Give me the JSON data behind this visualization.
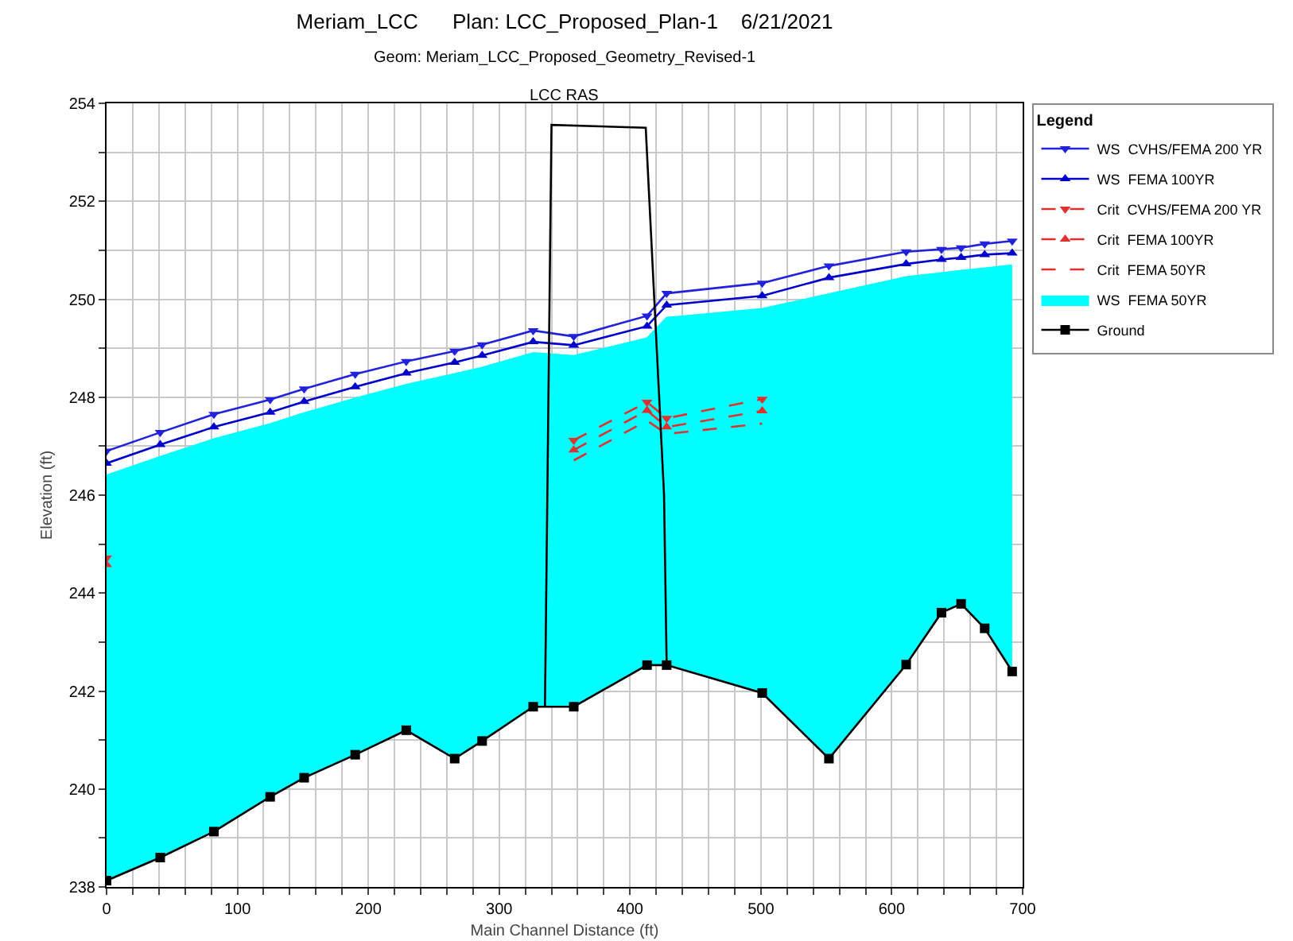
{
  "chart_data": {
    "type": "line",
    "title": "Meriam_LCC      Plan: LCC_Proposed_Plan-1    6/21/2021",
    "subtitle": "Geom: Meriam_LCC_Proposed_Geometry_Revised-1",
    "annotations": [
      "LCC RAS"
    ],
    "xlabel": "Main Channel Distance (ft)",
    "ylabel": "Elevation (ft)",
    "legend_title": "Legend",
    "legend": "top right",
    "grid": true,
    "x": [
      0,
      41,
      82,
      125,
      151,
      190,
      229,
      266,
      287,
      326,
      357,
      413,
      428,
      501,
      552,
      611,
      638,
      653,
      671,
      692
    ],
    "series": [
      {
        "name": "Ground",
        "type": "line",
        "color": "#000000",
        "marker": "square",
        "values": [
          238.13,
          238.6,
          239.13,
          239.84,
          240.23,
          240.7,
          241.2,
          240.62,
          240.98,
          241.68,
          241.68,
          242.53,
          242.53,
          241.96,
          240.62,
          242.54,
          243.6,
          243.78,
          243.28,
          242.4
        ]
      },
      {
        "name": "WS  FEMA 50YR",
        "type": "area",
        "color": "#00ffff",
        "marker": "none",
        "values": [
          246.4,
          246.78,
          247.14,
          247.45,
          247.67,
          247.97,
          248.25,
          248.47,
          248.6,
          248.9,
          248.84,
          249.2,
          249.62,
          249.8,
          250.1,
          250.45,
          250.53,
          250.58,
          250.63,
          250.69
        ]
      },
      {
        "name": "Crit  FEMA 50YR",
        "type": "line",
        "color": "#e03030",
        "marker": "none",
        "line_style": "dashed",
        "x": [
          357,
          413,
          428,
          501
        ],
        "values": [
          246.71,
          247.52,
          247.25,
          247.46
        ]
      },
      {
        "name": "Crit  FEMA 100YR",
        "type": "line",
        "color": "#e03030",
        "marker": "triangle",
        "line_style": "dashed",
        "x": [
          0,
          41,
          357,
          413,
          428,
          501
        ],
        "values": [
          244.58,
          null,
          246.92,
          247.73,
          247.39,
          247.72
        ]
      },
      {
        "name": "Crit  CVHS/FEMA 200 YR",
        "type": "line",
        "color": "#e03030",
        "marker": "triangle-down",
        "line_style": "dashed",
        "x": [
          0,
          41,
          357,
          413,
          428,
          501
        ],
        "values": [
          244.72,
          null,
          247.12,
          247.9,
          247.57,
          247.96
        ]
      },
      {
        "name": "WS  FEMA 100YR",
        "type": "line",
        "color": "#0000cc",
        "marker": "triangle",
        "values": [
          246.65,
          247.03,
          247.39,
          247.69,
          247.91,
          248.21,
          248.49,
          248.71,
          248.85,
          249.13,
          249.06,
          249.45,
          249.88,
          250.07,
          250.44,
          250.72,
          250.81,
          250.85,
          250.91,
          250.94
        ]
      },
      {
        "name": "WS  CVHS/FEMA 200 YR",
        "type": "line",
        "color": "#2222dd",
        "marker": "triangle-down",
        "values": [
          246.9,
          247.28,
          247.65,
          247.95,
          248.17,
          248.47,
          248.73,
          248.94,
          249.07,
          249.36,
          249.24,
          249.66,
          250.12,
          250.33,
          250.68,
          250.97,
          251.02,
          251.05,
          251.13,
          251.19
        ]
      },
      {
        "color": "#000000",
        "marker": "none",
        "x": [
          335,
          340,
          412,
          426,
          428
        ],
        "values": [
          241.68,
          253.56,
          253.5,
          246,
          242.53
        ]
      }
    ],
    "xlim": [
      0,
      700
    ],
    "xticks": [
      0,
      {
        "value": 20,
        "label": null
      },
      {
        "value": 40,
        "label": null
      },
      {
        "value": 60,
        "label": null
      },
      {
        "value": 80,
        "label": null
      },
      100,
      {
        "value": 120,
        "label": null
      },
      {
        "value": 140,
        "label": null
      },
      {
        "value": 160,
        "label": null
      },
      {
        "value": 180,
        "label": null
      },
      200,
      {
        "value": 220,
        "label": null
      },
      {
        "value": 240,
        "label": null
      },
      {
        "value": 260,
        "label": null
      },
      {
        "value": 280,
        "label": null
      },
      300,
      {
        "value": 320,
        "label": null
      },
      {
        "value": 340,
        "label": null
      },
      {
        "value": 360,
        "label": null
      },
      {
        "value": 380,
        "label": null
      },
      400,
      {
        "value": 420,
        "label": null
      },
      {
        "value": 440,
        "label": null
      },
      {
        "value": 460,
        "label": null
      },
      {
        "value": 480,
        "label": null
      },
      500,
      {
        "value": 520,
        "label": null
      },
      {
        "value": 540,
        "label": null
      },
      {
        "value": 560,
        "label": null
      },
      {
        "value": 580,
        "label": null
      },
      600,
      {
        "value": 620,
        "label": null
      },
      {
        "value": 640,
        "label": null
      },
      {
        "value": 660,
        "label": null
      },
      {
        "value": 680,
        "label": null
      },
      700
    ],
    "ylim": [
      238,
      254
    ],
    "yticks": [
      238,
      {
        "value": 239,
        "label": null
      },
      240,
      {
        "value": 241,
        "label": null
      },
      242,
      {
        "value": 243,
        "label": null
      },
      244,
      {
        "value": 245,
        "label": null
      },
      246,
      {
        "value": 247,
        "label": null
      },
      248,
      {
        "value": 249,
        "label": null
      },
      250,
      {
        "value": 251,
        "label": null
      },
      252,
      {
        "value": 253,
        "label": null
      },
      254
    ]
  }
}
